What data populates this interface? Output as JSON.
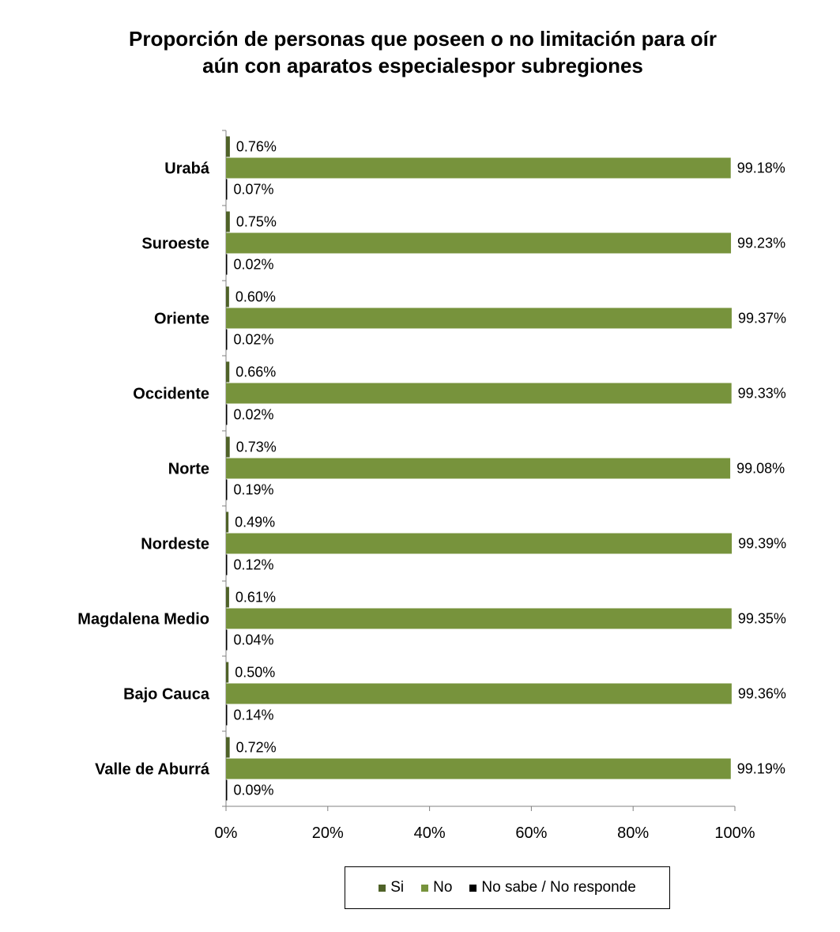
{
  "chart_data": {
    "type": "bar",
    "orientation": "horizontal",
    "title_lines": [
      "Proporción de personas que poseen o no limitación para oír",
      "aún con aparatos especialespor subregiones"
    ],
    "categories": [
      "Urabá",
      "Suroeste",
      "Oriente",
      "Occidente",
      "Norte",
      "Nordeste",
      "Magdalena Medio",
      "Bajo Cauca",
      "Valle de Aburrá"
    ],
    "series": [
      {
        "name": "Si",
        "color": "#4f6228",
        "values": [
          0.76,
          0.75,
          0.6,
          0.66,
          0.73,
          0.49,
          0.61,
          0.5,
          0.72
        ],
        "labels": [
          "0.76%",
          "0.75%",
          "0.60%",
          "0.66%",
          "0.73%",
          "0.49%",
          "0.61%",
          "0.50%",
          "0.72%"
        ]
      },
      {
        "name": "No",
        "color": "#77933c",
        "values": [
          99.18,
          99.23,
          99.37,
          99.33,
          99.08,
          99.39,
          99.35,
          99.36,
          99.19
        ],
        "labels": [
          "99.18%",
          "99.23%",
          "99.37%",
          "99.33%",
          "99.08%",
          "99.39%",
          "99.35%",
          "99.36%",
          "99.19%"
        ]
      },
      {
        "name": "No sabe / No responde",
        "color": "#000000",
        "values": [
          0.07,
          0.02,
          0.02,
          0.02,
          0.19,
          0.12,
          0.04,
          0.14,
          0.09
        ],
        "labels": [
          "0.07%",
          "0.02%",
          "0.02%",
          "0.02%",
          "0.19%",
          "0.12%",
          "0.04%",
          "0.14%",
          "0.09%"
        ]
      }
    ],
    "xlim": [
      0,
      100
    ],
    "xticks": [
      "0%",
      "20%",
      "40%",
      "60%",
      "80%",
      "100%"
    ],
    "legend_position": "bottom",
    "grid": false
  }
}
